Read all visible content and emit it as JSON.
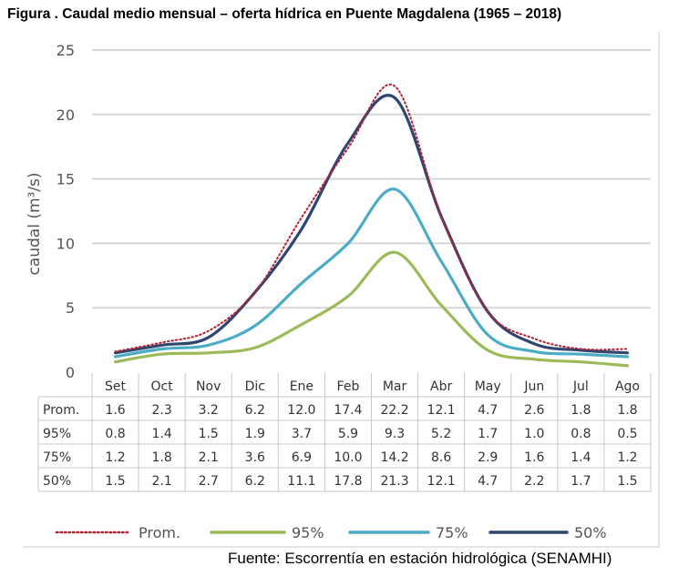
{
  "title": "Figura . Caudal medio mensual – oferta hídrica en Puente Magdalena (1965 – 2018)",
  "source": "Fuente: Escorrentía en estación hidrológica (SENAMHI)",
  "chart_data": {
    "type": "line",
    "ylabel": "caudal (m³/s)",
    "ylim": [
      0,
      25
    ],
    "yticks": [
      0,
      5,
      10,
      15,
      20,
      25
    ],
    "grid": true,
    "legend_position": "bottom",
    "categories": [
      "Set",
      "Oct",
      "Nov",
      "Dic",
      "Ene",
      "Feb",
      "Mar",
      "Abr",
      "May",
      "Jun",
      "Jul",
      "Ago"
    ],
    "series": [
      {
        "name": "Prom.",
        "color": "#b22234",
        "style": "dotted",
        "values": [
          1.6,
          2.3,
          3.2,
          6.2,
          12.0,
          17.4,
          22.2,
          12.1,
          4.7,
          2.6,
          1.8,
          1.8
        ],
        "labels": [
          "1.6",
          "2.3",
          "3.2",
          "6.2",
          "12.0",
          "17.4",
          "22.2",
          "12.1",
          "4.7",
          "2.6",
          "1.8",
          "1.8"
        ]
      },
      {
        "name": "95%",
        "color": "#9bbb59",
        "style": "solid",
        "values": [
          0.8,
          1.4,
          1.5,
          1.9,
          3.7,
          5.9,
          9.3,
          5.2,
          1.7,
          1.0,
          0.8,
          0.5
        ],
        "labels": [
          "0.8",
          "1.4",
          "1.5",
          "1.9",
          "3.7",
          "5.9",
          "9.3",
          "5.2",
          "1.7",
          "1.0",
          "0.8",
          "0.5"
        ]
      },
      {
        "name": "75%",
        "color": "#4bacc6",
        "style": "solid",
        "values": [
          1.2,
          1.8,
          2.1,
          3.6,
          6.9,
          10.0,
          14.2,
          8.6,
          2.9,
          1.6,
          1.4,
          1.2
        ],
        "labels": [
          "1.2",
          "1.8",
          "2.1",
          "3.6",
          "6.9",
          "10.0",
          "14.2",
          "8.6",
          "2.9",
          "1.6",
          "1.4",
          "1.2"
        ]
      },
      {
        "name": "50%",
        "color": "#2e4670",
        "style": "solid",
        "values": [
          1.5,
          2.1,
          2.7,
          6.2,
          11.1,
          17.8,
          21.3,
          12.1,
          4.7,
          2.2,
          1.7,
          1.5
        ],
        "labels": [
          "1.5",
          "2.1",
          "2.7",
          "6.2",
          "11.1",
          "17.8",
          "21.3",
          "12.1",
          "4.7",
          "2.2",
          "1.7",
          "1.5"
        ]
      }
    ]
  }
}
